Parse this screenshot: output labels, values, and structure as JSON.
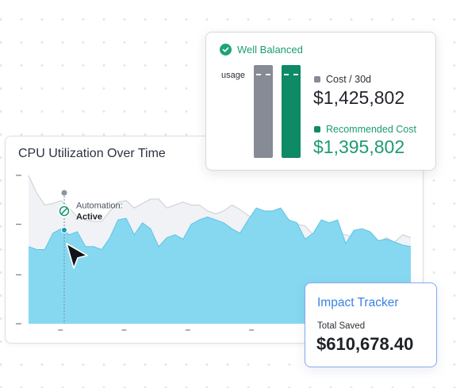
{
  "cpu_card": {
    "title": "CPU Utilization Over Time",
    "automation": {
      "label": "Automation:",
      "status": "Active"
    }
  },
  "balance_card": {
    "status": "Well Balanced",
    "usage_label": "usage",
    "cost": {
      "label": "Cost / 30d",
      "value": "$1,425,802"
    },
    "recommended": {
      "label": "Recommended Cost",
      "value": "$1,395,802"
    }
  },
  "impact_card": {
    "title": "Impact Tracker",
    "subtitle": "Total Saved",
    "value": "$610,678.40"
  },
  "colors": {
    "accent_green": "#1d9b72",
    "bar_green": "#0d8a66",
    "bar_gray": "#878b95",
    "area_blue": "#86d8f1",
    "impact_blue": "#3a82e0"
  },
  "icons": {
    "balance": "check-circle-icon",
    "automation": "no-entry-circle-icon",
    "cursor": "pointer-cursor-icon"
  },
  "chart_data": {
    "type": "area",
    "title": "CPU Utilization Over Time",
    "xlabel": "",
    "ylabel": "",
    "ylim": [
      0,
      100
    ],
    "grid": false,
    "series": [
      {
        "values": [
          52,
          50,
          50,
          61,
          64,
          60,
          62,
          52,
          52,
          50,
          58,
          70,
          71,
          60,
          68,
          64,
          52,
          58,
          60,
          57,
          67,
          70,
          72,
          70,
          68,
          64,
          61,
          70,
          78,
          76,
          76,
          78,
          70,
          68,
          57,
          61,
          70,
          68,
          70,
          54,
          63,
          64,
          62,
          56,
          57,
          55,
          53,
          52
        ]
      },
      {
        "values": [
          100,
          88,
          80,
          81,
          83,
          78,
          72,
          70,
          69,
          69,
          76,
          82,
          83,
          78,
          81,
          84,
          84,
          78,
          80,
          82,
          80,
          80,
          76,
          74,
          76,
          80,
          77,
          73,
          70,
          71,
          68,
          70,
          60,
          67,
          66,
          60,
          67,
          62,
          61,
          60,
          58,
          56,
          60,
          55,
          58,
          55,
          60,
          58
        ]
      }
    ]
  }
}
